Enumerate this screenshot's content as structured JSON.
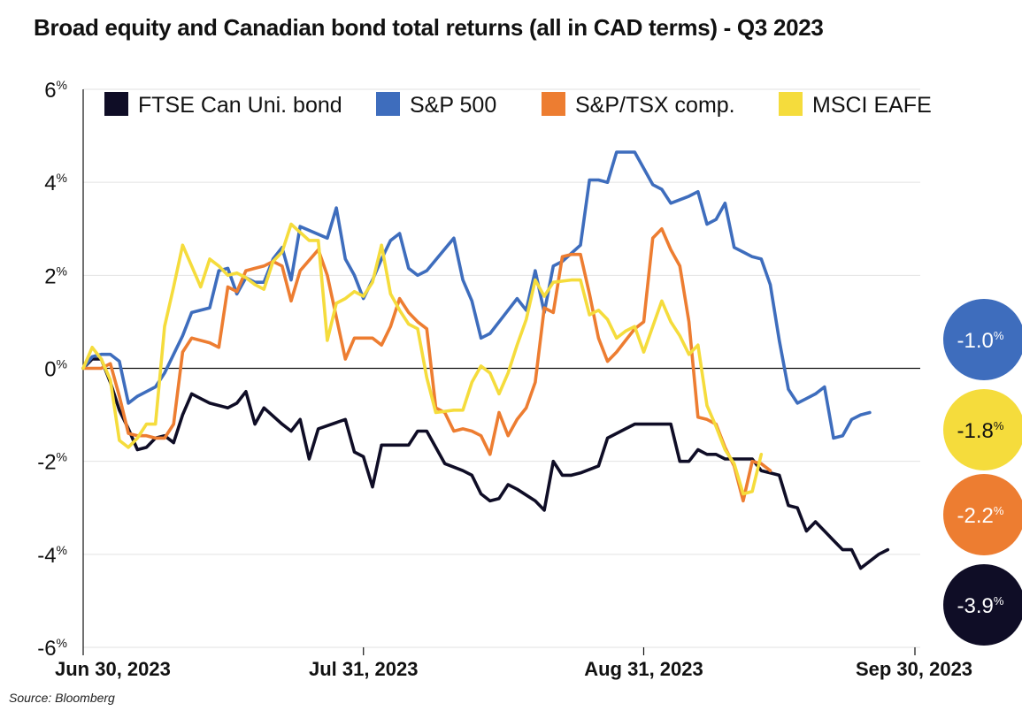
{
  "chart_data": {
    "type": "line",
    "title": "Broad equity and Canadian bond total returns (all in CAD terms) - Q3 2023",
    "source": "Source: Bloomberg",
    "y_unit": "%",
    "ylim": [
      -6,
      6
    ],
    "y_ticks": [
      {
        "value": 6,
        "label": "6"
      },
      {
        "value": 4,
        "label": "4"
      },
      {
        "value": 2,
        "label": "2"
      },
      {
        "value": 0,
        "label": "0"
      },
      {
        "value": -2,
        "label": "-2"
      },
      {
        "value": -4,
        "label": "-4"
      },
      {
        "value": -6,
        "label": "-6"
      }
    ],
    "x_ticks": [
      {
        "day": 0,
        "label": "Jun 30, 2023"
      },
      {
        "day": 31,
        "label": "Jul 31, 2023"
      },
      {
        "day": 62,
        "label": "Aug 31, 2023"
      },
      {
        "day": 92,
        "label": "Sep 30, 2023"
      }
    ],
    "x_range_days": [
      0,
      92
    ],
    "grid": true,
    "legend_position": "top",
    "series": [
      {
        "name": "FTSE Can Uni. bond",
        "color": "#0f0d26",
        "end_label": "-3.9",
        "points": [
          [
            0,
            0
          ],
          [
            1,
            0.2
          ],
          [
            2,
            0.2
          ],
          [
            3,
            -0.3
          ],
          [
            4,
            -0.9
          ],
          [
            5,
            -1.3
          ],
          [
            6,
            -1.75
          ],
          [
            7,
            -1.7
          ],
          [
            8,
            -1.5
          ],
          [
            9,
            -1.45
          ],
          [
            10,
            -1.6
          ],
          [
            11,
            -1.0
          ],
          [
            12,
            -0.55
          ],
          [
            13,
            -0.65
          ],
          [
            14,
            -0.75
          ],
          [
            16,
            -0.85
          ],
          [
            17,
            -0.75
          ],
          [
            18,
            -0.5
          ],
          [
            19,
            -1.2
          ],
          [
            20,
            -0.85
          ],
          [
            22,
            -1.2
          ],
          [
            23,
            -1.35
          ],
          [
            24,
            -1.1
          ],
          [
            25,
            -1.95
          ],
          [
            26,
            -1.3
          ],
          [
            29,
            -1.1
          ],
          [
            30,
            -1.8
          ],
          [
            31,
            -1.9
          ],
          [
            32,
            -2.55
          ],
          [
            33,
            -1.65
          ],
          [
            36,
            -1.65
          ],
          [
            37,
            -1.35
          ],
          [
            38,
            -1.35
          ],
          [
            39,
            -1.7
          ],
          [
            40,
            -2.05
          ],
          [
            42,
            -2.2
          ],
          [
            43,
            -2.3
          ],
          [
            44,
            -2.7
          ],
          [
            45,
            -2.85
          ],
          [
            46,
            -2.8
          ],
          [
            47,
            -2.5
          ],
          [
            48,
            -2.6
          ],
          [
            50,
            -2.85
          ],
          [
            51,
            -3.05
          ],
          [
            52,
            -2.0
          ],
          [
            53,
            -2.3
          ],
          [
            54,
            -2.3
          ],
          [
            55,
            -2.25
          ],
          [
            57,
            -2.1
          ],
          [
            58,
            -1.5
          ],
          [
            60,
            -1.3
          ],
          [
            61,
            -1.2
          ],
          [
            63,
            -1.2
          ],
          [
            64,
            -1.2
          ],
          [
            65,
            -1.2
          ],
          [
            66,
            -2.0
          ],
          [
            67,
            -2.0
          ],
          [
            68,
            -1.75
          ],
          [
            69,
            -1.85
          ],
          [
            70,
            -1.85
          ],
          [
            71,
            -1.95
          ],
          [
            72,
            -1.95
          ],
          [
            74,
            -1.95
          ],
          [
            75,
            -2.2
          ],
          [
            76,
            -2.25
          ],
          [
            77,
            -2.3
          ],
          [
            78,
            -2.95
          ],
          [
            79,
            -3.0
          ],
          [
            80,
            -3.5
          ],
          [
            81,
            -3.3
          ],
          [
            82,
            -3.5
          ],
          [
            83,
            -3.7
          ],
          [
            84,
            -3.9
          ],
          [
            85,
            -3.9
          ],
          [
            86,
            -4.3
          ],
          [
            87,
            -4.15
          ],
          [
            88,
            -4.0
          ],
          [
            89,
            -3.9
          ]
        ]
      },
      {
        "name": "S&P 500",
        "color": "#3e6dbd",
        "end_label": "-1.0",
        "points": [
          [
            0,
            0
          ],
          [
            1,
            0.25
          ],
          [
            2,
            0.3
          ],
          [
            3,
            0.3
          ],
          [
            4,
            0.15
          ],
          [
            5,
            -0.75
          ],
          [
            6,
            -0.6
          ],
          [
            7,
            -0.5
          ],
          [
            8,
            -0.4
          ],
          [
            9,
            -0.1
          ],
          [
            10,
            0.3
          ],
          [
            11,
            0.7
          ],
          [
            12,
            1.2
          ],
          [
            13,
            1.25
          ],
          [
            14,
            1.3
          ],
          [
            15,
            2.1
          ],
          [
            16,
            2.15
          ],
          [
            17,
            1.6
          ],
          [
            18,
            1.95
          ],
          [
            19,
            1.85
          ],
          [
            20,
            1.85
          ],
          [
            21,
            2.35
          ],
          [
            22,
            2.6
          ],
          [
            23,
            1.9
          ],
          [
            24,
            3.05
          ],
          [
            27,
            2.8
          ],
          [
            28,
            3.45
          ],
          [
            29,
            2.35
          ],
          [
            30,
            2.0
          ],
          [
            31,
            1.5
          ],
          [
            32,
            1.9
          ],
          [
            33,
            2.35
          ],
          [
            34,
            2.75
          ],
          [
            35,
            2.9
          ],
          [
            36,
            2.15
          ],
          [
            37,
            2.0
          ],
          [
            38,
            2.1
          ],
          [
            41,
            2.8
          ],
          [
            42,
            1.9
          ],
          [
            43,
            1.45
          ],
          [
            44,
            0.65
          ],
          [
            45,
            0.75
          ],
          [
            47,
            1.25
          ],
          [
            48,
            1.5
          ],
          [
            49,
            1.25
          ],
          [
            50,
            2.1
          ],
          [
            51,
            1.2
          ],
          [
            52,
            2.2
          ],
          [
            53,
            2.3
          ],
          [
            55,
            2.65
          ],
          [
            56,
            4.05
          ],
          [
            57,
            4.05
          ],
          [
            58,
            4.0
          ],
          [
            59,
            4.65
          ],
          [
            60,
            4.65
          ],
          [
            61,
            4.65
          ],
          [
            62,
            4.3
          ],
          [
            63,
            3.95
          ],
          [
            64,
            3.85
          ],
          [
            65,
            3.55
          ],
          [
            67,
            3.7
          ],
          [
            68,
            3.8
          ],
          [
            69,
            3.1
          ],
          [
            70,
            3.2
          ],
          [
            71,
            3.55
          ],
          [
            72,
            2.6
          ],
          [
            73,
            2.5
          ],
          [
            74,
            2.4
          ],
          [
            75,
            2.35
          ],
          [
            76,
            1.8
          ],
          [
            77,
            0.6
          ],
          [
            78,
            -0.45
          ],
          [
            79,
            -0.75
          ],
          [
            80,
            -0.65
          ],
          [
            81,
            -0.55
          ],
          [
            82,
            -0.4
          ],
          [
            83,
            -1.5
          ],
          [
            84,
            -1.45
          ],
          [
            85,
            -1.1
          ],
          [
            86,
            -1.0
          ],
          [
            87,
            -0.95
          ]
        ]
      },
      {
        "name": "S&P/TSX comp.",
        "color": "#ed7d31",
        "end_label": "-2.2",
        "points": [
          [
            0,
            0
          ],
          [
            1,
            0
          ],
          [
            2,
            0
          ],
          [
            3,
            0.1
          ],
          [
            4,
            -0.6
          ],
          [
            5,
            -1.4
          ],
          [
            6,
            -1.45
          ],
          [
            7,
            -1.45
          ],
          [
            8,
            -1.5
          ],
          [
            9,
            -1.5
          ],
          [
            10,
            -1.2
          ],
          [
            11,
            0.35
          ],
          [
            12,
            0.65
          ],
          [
            14,
            0.55
          ],
          [
            15,
            0.45
          ],
          [
            16,
            1.75
          ],
          [
            17,
            1.65
          ],
          [
            18,
            2.1
          ],
          [
            19,
            2.15
          ],
          [
            20,
            2.2
          ],
          [
            21,
            2.3
          ],
          [
            22,
            2.2
          ],
          [
            23,
            1.45
          ],
          [
            24,
            2.1
          ],
          [
            26,
            2.55
          ],
          [
            27,
            2.0
          ],
          [
            28,
            1.1
          ],
          [
            29,
            0.2
          ],
          [
            30,
            0.65
          ],
          [
            31,
            0.65
          ],
          [
            32,
            0.65
          ],
          [
            33,
            0.5
          ],
          [
            34,
            0.9
          ],
          [
            35,
            1.5
          ],
          [
            36,
            1.2
          ],
          [
            37,
            1.0
          ],
          [
            38,
            0.85
          ],
          [
            39,
            -0.85
          ],
          [
            40,
            -0.95
          ],
          [
            41,
            -1.35
          ],
          [
            42,
            -1.3
          ],
          [
            43,
            -1.35
          ],
          [
            44,
            -1.45
          ],
          [
            45,
            -1.85
          ],
          [
            46,
            -0.95
          ],
          [
            47,
            -1.45
          ],
          [
            48,
            -1.1
          ],
          [
            49,
            -0.85
          ],
          [
            50,
            -0.3
          ],
          [
            51,
            1.3
          ],
          [
            52,
            1.2
          ],
          [
            53,
            2.4
          ],
          [
            54,
            2.45
          ],
          [
            55,
            2.45
          ],
          [
            56,
            1.6
          ],
          [
            57,
            0.65
          ],
          [
            58,
            0.15
          ],
          [
            59,
            0.35
          ],
          [
            60,
            0.6
          ],
          [
            61,
            0.85
          ],
          [
            62,
            1.0
          ],
          [
            63,
            2.8
          ],
          [
            64,
            3.0
          ],
          [
            65,
            2.55
          ],
          [
            66,
            2.2
          ],
          [
            67,
            1.0
          ],
          [
            68,
            -1.05
          ],
          [
            69,
            -1.1
          ],
          [
            70,
            -1.2
          ],
          [
            71,
            -1.7
          ],
          [
            72,
            -2.1
          ],
          [
            73,
            -2.85
          ],
          [
            74,
            -2.0
          ],
          [
            75,
            -2.05
          ],
          [
            76,
            -2.2
          ]
        ]
      },
      {
        "name": "MSCI EAFE",
        "color": "#f5dc3c",
        "end_label": "-1.8",
        "points": [
          [
            0,
            0
          ],
          [
            1,
            0.45
          ],
          [
            2,
            0.2
          ],
          [
            3,
            -0.25
          ],
          [
            4,
            -1.55
          ],
          [
            5,
            -1.7
          ],
          [
            6,
            -1.5
          ],
          [
            7,
            -1.2
          ],
          [
            8,
            -1.2
          ],
          [
            9,
            0.9
          ],
          [
            10,
            1.75
          ],
          [
            11,
            2.65
          ],
          [
            12,
            2.2
          ],
          [
            13,
            1.75
          ],
          [
            14,
            2.35
          ],
          [
            15,
            2.2
          ],
          [
            16,
            2.0
          ],
          [
            17,
            2.05
          ],
          [
            18,
            1.95
          ],
          [
            19,
            1.8
          ],
          [
            20,
            1.7
          ],
          [
            21,
            2.3
          ],
          [
            22,
            2.5
          ],
          [
            23,
            3.1
          ],
          [
            25,
            2.75
          ],
          [
            26,
            2.75
          ],
          [
            27,
            0.6
          ],
          [
            28,
            1.4
          ],
          [
            29,
            1.5
          ],
          [
            30,
            1.65
          ],
          [
            31,
            1.55
          ],
          [
            32,
            1.85
          ],
          [
            33,
            2.65
          ],
          [
            34,
            1.6
          ],
          [
            35,
            1.25
          ],
          [
            36,
            0.95
          ],
          [
            37,
            0.85
          ],
          [
            38,
            -0.2
          ],
          [
            39,
            -0.95
          ],
          [
            41,
            -0.9
          ],
          [
            42,
            -0.9
          ],
          [
            43,
            -0.3
          ],
          [
            44,
            0.05
          ],
          [
            45,
            -0.1
          ],
          [
            46,
            -0.55
          ],
          [
            47,
            -0.1
          ],
          [
            48,
            0.5
          ],
          [
            49,
            1.05
          ],
          [
            50,
            1.9
          ],
          [
            51,
            1.55
          ],
          [
            52,
            1.85
          ],
          [
            54,
            1.9
          ],
          [
            55,
            1.9
          ],
          [
            56,
            1.15
          ],
          [
            57,
            1.25
          ],
          [
            58,
            1.05
          ],
          [
            59,
            0.65
          ],
          [
            60,
            0.8
          ],
          [
            61,
            0.9
          ],
          [
            62,
            0.35
          ],
          [
            63,
            0.9
          ],
          [
            64,
            1.45
          ],
          [
            65,
            1.0
          ],
          [
            66,
            0.7
          ],
          [
            67,
            0.3
          ],
          [
            68,
            0.5
          ],
          [
            69,
            -0.8
          ],
          [
            70,
            -1.25
          ],
          [
            71,
            -1.75
          ],
          [
            72,
            -2.05
          ],
          [
            73,
            -2.7
          ],
          [
            74,
            -2.65
          ],
          [
            75,
            -1.85
          ]
        ]
      }
    ]
  }
}
